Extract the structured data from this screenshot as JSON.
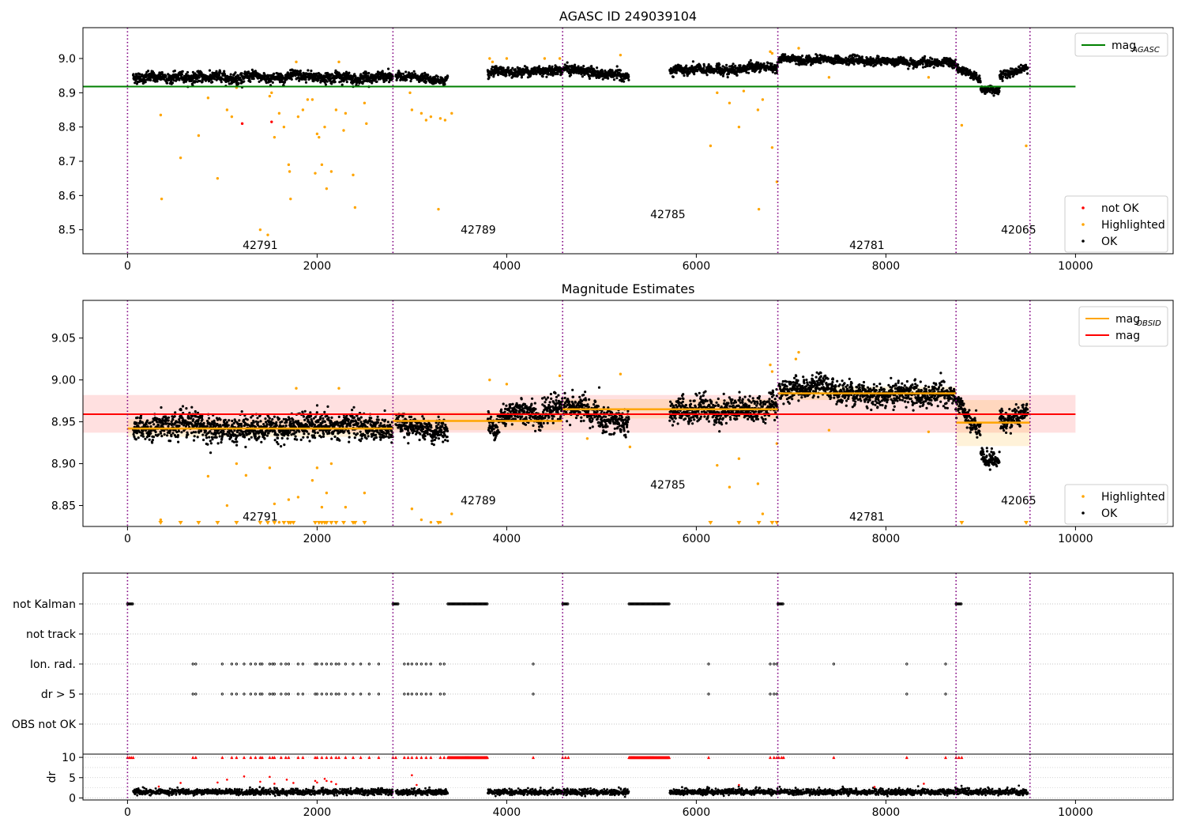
{
  "chart_data": [
    {
      "type": "scatter",
      "title": "AGASC ID 249039104",
      "xlim": [
        -470,
        11030
      ],
      "ylim": [
        8.43,
        9.09
      ],
      "x_ticks": [
        0,
        2000,
        4000,
        6000,
        8000,
        10000
      ],
      "y_ticks": [
        8.5,
        8.6,
        8.7,
        8.8,
        8.9,
        9.0
      ],
      "legend_top": [
        {
          "label": "mag",
          "sub": "AGASC",
          "color": "#008000",
          "kind": "line"
        }
      ],
      "legend_bottom": [
        {
          "label": "not OK",
          "color": "#ff0000",
          "kind": "dot"
        },
        {
          "label": "Highlighted",
          "color": "#ffa500",
          "kind": "dot"
        },
        {
          "label": "OK",
          "color": "#000000",
          "kind": "dot"
        }
      ],
      "hline": {
        "y": 8.918,
        "x": [
          -470,
          10000
        ],
        "color": "#008000"
      },
      "obsid_boundaries": [
        0,
        2800,
        4590,
        6860,
        8740,
        9520
      ],
      "obsid_labels": [
        {
          "text": "42791",
          "x": 1400,
          "y": 8.455
        },
        {
          "text": "42789",
          "x": 3700,
          "y": 8.5
        },
        {
          "text": "42785",
          "x": 5700,
          "y": 8.545
        },
        {
          "text": "42781",
          "x": 7800,
          "y": 8.455
        },
        {
          "text": "42065",
          "x": 9400,
          "y": 8.5
        }
      ],
      "segments": [
        {
          "x": [
            60,
            2800
          ],
          "y": [
            8.945,
            8.945
          ],
          "spread": 0.013
        },
        {
          "x": [
            2830,
            3380
          ],
          "y": [
            8.95,
            8.935
          ],
          "spread": 0.01
        },
        {
          "x": [
            3800,
            4590
          ],
          "y": [
            8.955,
            8.97
          ],
          "spread": 0.012
        },
        {
          "x": [
            4600,
            5290
          ],
          "y": [
            8.97,
            8.945
          ],
          "spread": 0.012
        },
        {
          "x": [
            5720,
            6860
          ],
          "y": [
            8.962,
            8.975
          ],
          "spread": 0.012
        },
        {
          "x": [
            6870,
            8740
          ],
          "y": [
            9.0,
            8.985
          ],
          "spread": 0.01
        },
        {
          "x": [
            8740,
            9000
          ],
          "y": [
            8.975,
            8.94
          ],
          "spread": 0.01
        },
        {
          "x": [
            9000,
            9200
          ],
          "y": [
            8.91,
            8.91
          ],
          "spread": 0.01
        },
        {
          "x": [
            9200,
            9500
          ],
          "y": [
            8.95,
            8.975
          ],
          "spread": 0.01
        }
      ],
      "highlighted": [
        [
          350,
          8.835
        ],
        [
          360,
          8.59
        ],
        [
          560,
          8.71
        ],
        [
          750,
          8.775
        ],
        [
          850,
          8.885
        ],
        [
          950,
          8.65
        ],
        [
          1050,
          8.85
        ],
        [
          1100,
          8.83
        ],
        [
          1150,
          8.915
        ],
        [
          1400,
          8.5
        ],
        [
          1480,
          8.485
        ],
        [
          1500,
          8.89
        ],
        [
          1520,
          8.9
        ],
        [
          1550,
          8.77
        ],
        [
          1600,
          8.84
        ],
        [
          1650,
          8.8
        ],
        [
          1700,
          8.69
        ],
        [
          1710,
          8.67
        ],
        [
          1720,
          8.59
        ],
        [
          1800,
          8.83
        ],
        [
          1850,
          8.85
        ],
        [
          1900,
          8.88
        ],
        [
          1950,
          8.88
        ],
        [
          1980,
          8.665
        ],
        [
          2000,
          8.78
        ],
        [
          2020,
          8.77
        ],
        [
          2050,
          8.69
        ],
        [
          2080,
          8.8
        ],
        [
          2100,
          8.62
        ],
        [
          2150,
          8.67
        ],
        [
          2200,
          8.85
        ],
        [
          2280,
          8.79
        ],
        [
          2300,
          8.84
        ],
        [
          2380,
          8.66
        ],
        [
          2400,
          8.565
        ],
        [
          2500,
          8.87
        ],
        [
          2520,
          8.81
        ],
        [
          2980,
          8.9
        ],
        [
          3000,
          8.85
        ],
        [
          3100,
          8.84
        ],
        [
          3150,
          8.82
        ],
        [
          3200,
          8.83
        ],
        [
          3280,
          8.56
        ],
        [
          3300,
          8.825
        ],
        [
          3350,
          8.82
        ],
        [
          3420,
          8.84
        ],
        [
          6150,
          8.745
        ],
        [
          6220,
          8.9
        ],
        [
          6350,
          8.87
        ],
        [
          6450,
          8.8
        ],
        [
          6500,
          8.905
        ],
        [
          6650,
          8.85
        ],
        [
          6660,
          8.56
        ],
        [
          6700,
          8.88
        ],
        [
          6800,
          8.74
        ],
        [
          6850,
          8.64
        ],
        [
          7400,
          8.945
        ],
        [
          8450,
          8.945
        ],
        [
          8800,
          8.805
        ],
        [
          9480,
          8.745
        ],
        [
          3820,
          9.0
        ],
        [
          3850,
          8.99
        ],
        [
          4000,
          9.0
        ],
        [
          4400,
          9.0
        ],
        [
          4560,
          9.0
        ],
        [
          5200,
          9.01
        ],
        [
          6780,
          9.02
        ],
        [
          6800,
          9.015
        ],
        [
          7080,
          9.03
        ],
        [
          1780,
          8.99
        ],
        [
          2230,
          8.99
        ]
      ],
      "not_ok": [
        [
          1210,
          8.81
        ],
        [
          1520,
          8.815
        ]
      ]
    },
    {
      "type": "scatter",
      "title": "Magnitude Estimates",
      "xlim": [
        -470,
        11030
      ],
      "ylim": [
        8.825,
        9.095
      ],
      "x_ticks": [
        0,
        2000,
        4000,
        6000,
        8000,
        10000
      ],
      "y_ticks": [
        8.85,
        8.9,
        8.95,
        9.0,
        9.05
      ],
      "legend_top": [
        {
          "label": "mag",
          "sub": "OBSID",
          "color": "#ffa500",
          "kind": "line"
        },
        {
          "label": "mag",
          "sub": "",
          "color": "#ff0000",
          "kind": "line"
        }
      ],
      "legend_bottom": [
        {
          "label": "Highlighted",
          "color": "#ffa500",
          "kind": "dot"
        },
        {
          "label": "OK",
          "color": "#000000",
          "kind": "dot"
        }
      ],
      "mean_mag": {
        "y": 8.959,
        "band": [
          8.937,
          8.982
        ],
        "x": [
          -470,
          10000
        ]
      },
      "obsid_mags": [
        {
          "x": [
            0,
            2800
          ],
          "y": 8.942,
          "band": [
            8.932,
            8.953
          ]
        },
        {
          "x": [
            2800,
            4590
          ],
          "y": 8.951,
          "band": [
            8.94,
            8.962
          ]
        },
        {
          "x": [
            4590,
            6860
          ],
          "y": 8.965,
          "band": [
            8.954,
            8.977
          ]
        },
        {
          "x": [
            6860,
            8740
          ],
          "y": 8.984,
          "band": [
            8.976,
            8.992
          ]
        },
        {
          "x": [
            8740,
            9520
          ],
          "y": 8.949,
          "band": [
            8.921,
            8.976
          ]
        }
      ],
      "obsid_boundaries": [
        0,
        2800,
        4590,
        6860,
        8740,
        9520
      ],
      "obsid_labels": [
        {
          "text": "42791",
          "x": 1400,
          "y": 8.837
        },
        {
          "text": "42789",
          "x": 3700,
          "y": 8.856
        },
        {
          "text": "42785",
          "x": 5700,
          "y": 8.875
        },
        {
          "text": "42781",
          "x": 7800,
          "y": 8.837
        },
        {
          "text": "42065",
          "x": 9400,
          "y": 8.856
        }
      ],
      "segments": [
        {
          "x": [
            60,
            2800
          ],
          "y": [
            8.942,
            8.945
          ],
          "spread": 0.013
        },
        {
          "x": [
            2830,
            3380
          ],
          "y": [
            8.95,
            8.935
          ],
          "spread": 0.01
        },
        {
          "x": [
            3800,
            4590
          ],
          "y": [
            8.948,
            8.968
          ],
          "spread": 0.013
        },
        {
          "x": [
            4600,
            5290
          ],
          "y": [
            8.97,
            8.945
          ],
          "spread": 0.013
        },
        {
          "x": [
            5720,
            6860
          ],
          "y": [
            8.96,
            8.97
          ],
          "spread": 0.013
        },
        {
          "x": [
            6870,
            8740
          ],
          "y": [
            8.99,
            8.98
          ],
          "spread": 0.012
        },
        {
          "x": [
            8740,
            9000
          ],
          "y": [
            8.97,
            8.935
          ],
          "spread": 0.01
        },
        {
          "x": [
            9000,
            9200
          ],
          "y": [
            8.905,
            8.905
          ],
          "spread": 0.01
        },
        {
          "x": [
            9200,
            9500
          ],
          "y": [
            8.95,
            8.965
          ],
          "spread": 0.01
        }
      ],
      "highlighted": [
        [
          350,
          8.833
        ],
        [
          850,
          8.885
        ],
        [
          1050,
          8.85
        ],
        [
          1150,
          8.9
        ],
        [
          1250,
          8.886
        ],
        [
          1500,
          8.895
        ],
        [
          1550,
          8.852
        ],
        [
          1600,
          8.83
        ],
        [
          1700,
          8.857
        ],
        [
          1800,
          8.86
        ],
        [
          1950,
          8.88
        ],
        [
          2000,
          8.895
        ],
        [
          2050,
          8.848
        ],
        [
          2100,
          8.865
        ],
        [
          2150,
          8.9
        ],
        [
          2300,
          8.848
        ],
        [
          2500,
          8.865
        ],
        [
          3000,
          8.846
        ],
        [
          3100,
          8.833
        ],
        [
          3200,
          8.83
        ],
        [
          3300,
          8.83
        ],
        [
          3420,
          8.84
        ],
        [
          6220,
          8.898
        ],
        [
          6350,
          8.872
        ],
        [
          6450,
          8.906
        ],
        [
          6650,
          8.876
        ],
        [
          6700,
          8.84
        ],
        [
          6850,
          8.924
        ],
        [
          7400,
          8.94
        ],
        [
          8450,
          8.938
        ],
        [
          3820,
          9.0
        ],
        [
          4000,
          8.995
        ],
        [
          4560,
          9.005
        ],
        [
          5200,
          9.007
        ],
        [
          5300,
          8.92
        ],
        [
          4850,
          8.93
        ],
        [
          6780,
          9.018
        ],
        [
          6800,
          9.01
        ],
        [
          7080,
          9.033
        ],
        [
          7050,
          9.025
        ],
        [
          1780,
          8.99
        ],
        [
          2230,
          8.99
        ]
      ],
      "lower_limits_x": [
        350,
        560,
        750,
        950,
        1150,
        1400,
        1480,
        1550,
        1650,
        1700,
        1720,
        1750,
        1980,
        2020,
        2050,
        2080,
        2100,
        2150,
        2200,
        2280,
        2380,
        2400,
        2500,
        3280,
        6150,
        6450,
        6660,
        6800,
        6850,
        8800,
        9480
      ]
    },
    {
      "type": "scatter",
      "xlim": [
        -470,
        11030
      ],
      "x_ticks": [
        0,
        2000,
        4000,
        6000,
        8000,
        10000
      ],
      "flag_rows": [
        "not Kalman",
        "not track",
        "Ion. rad.",
        "dr > 5",
        "OBS not OK"
      ],
      "flags": {
        "not Kalman": [
          [
            0,
            60
          ],
          [
            2800,
            2860
          ],
          [
            3380,
            3800
          ],
          [
            4590,
            4650
          ],
          [
            5290,
            5720
          ],
          [
            6860,
            6920
          ],
          [
            8740,
            8800
          ]
        ],
        "Ion. rad.": [
          690,
          720,
          1000,
          1100,
          1150,
          1230,
          1300,
          1350,
          1400,
          1420,
          1500,
          1530,
          1550,
          1620,
          1670,
          1700,
          1800,
          1850,
          1980,
          2000,
          2050,
          2100,
          2150,
          2200,
          2230,
          2300,
          2380,
          2460,
          2550,
          2650,
          2920,
          2960,
          3000,
          3050,
          3100,
          3150,
          3200,
          3300,
          3340,
          4280,
          6130,
          6780,
          6820,
          6850,
          7450,
          8220,
          8630
        ],
        "dr > 5": [
          690,
          720,
          1000,
          1100,
          1150,
          1230,
          1300,
          1350,
          1400,
          1420,
          1500,
          1530,
          1550,
          1620,
          1670,
          1700,
          1800,
          1850,
          1980,
          2000,
          2050,
          2100,
          2150,
          2200,
          2230,
          2300,
          2380,
          2460,
          2550,
          2650,
          2920,
          2960,
          3000,
          3050,
          3100,
          3150,
          3200,
          3300,
          3340,
          4280,
          6130,
          6780,
          6820,
          6850,
          8220,
          8630
        ]
      },
      "obsid_boundaries": [
        0,
        2800,
        4590,
        6860,
        8740,
        9520
      ],
      "dr": {
        "ylabel": "dr",
        "ylim": [
          -0.5,
          10.8
        ],
        "y_ticks": [
          0,
          5,
          10
        ],
        "segments": [
          [
            60,
            2800
          ],
          [
            2830,
            3380
          ],
          [
            3800,
            4590
          ],
          [
            4600,
            5290
          ],
          [
            5720,
            6860
          ],
          [
            6870,
            8740
          ],
          [
            8740,
            9500
          ]
        ],
        "clipped_x": [
          0,
          20,
          40,
          60,
          690,
          720,
          1000,
          1100,
          1150,
          1230,
          1300,
          1350,
          1400,
          1420,
          1500,
          1530,
          1550,
          1620,
          1670,
          1700,
          1800,
          1850,
          1980,
          2000,
          2050,
          2100,
          2150,
          2200,
          2230,
          2300,
          2380,
          2460,
          2550,
          2650,
          2800,
          2830,
          2920,
          2960,
          3000,
          3050,
          3100,
          3150,
          3200,
          3300,
          3340,
          4280,
          4590,
          4620,
          4650,
          6130,
          6780,
          6820,
          6850,
          6870,
          6900,
          6920,
          7450,
          8220,
          8630,
          8740,
          8770,
          8800
        ],
        "clipped_ranges": [
          [
            3380,
            3800
          ],
          [
            5290,
            5720
          ]
        ],
        "red_points": [
          [
            330,
            2.8
          ],
          [
            560,
            3.7
          ],
          [
            950,
            3.8
          ],
          [
            1050,
            4.5
          ],
          [
            1230,
            5.3
          ],
          [
            1400,
            4.0
          ],
          [
            1500,
            5.2
          ],
          [
            1550,
            3.5
          ],
          [
            1680,
            4.5
          ],
          [
            1750,
            3.7
          ],
          [
            1980,
            4.2
          ],
          [
            2000,
            3.8
          ],
          [
            2080,
            4.7
          ],
          [
            2100,
            4.2
          ],
          [
            2150,
            4.0
          ],
          [
            2200,
            3.4
          ],
          [
            3000,
            5.6
          ],
          [
            3050,
            3.2
          ],
          [
            6450,
            3.2
          ],
          [
            7880,
            2.7
          ],
          [
            8400,
            3.5
          ]
        ]
      }
    }
  ]
}
